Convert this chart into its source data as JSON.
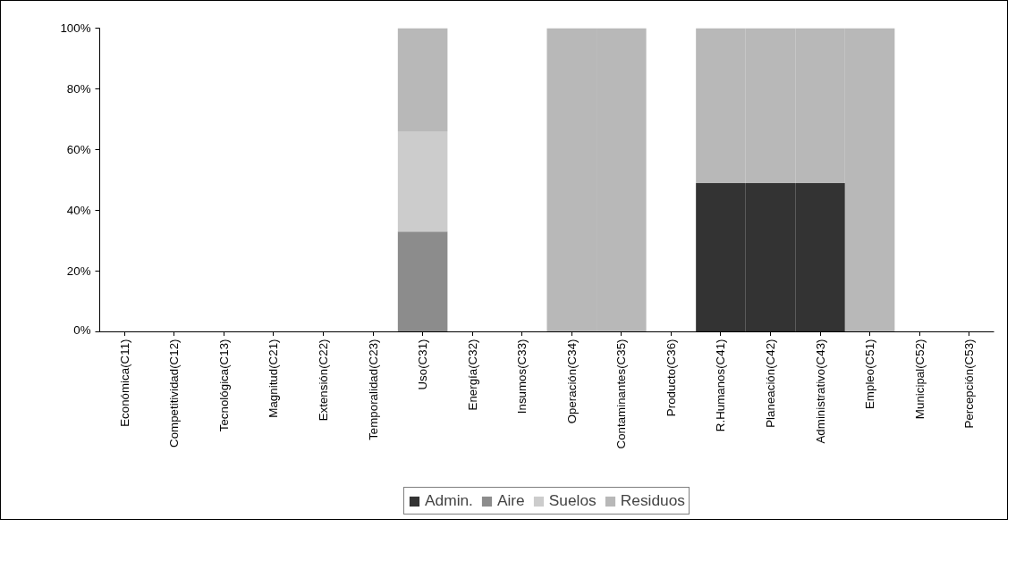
{
  "chart_data": {
    "type": "bar",
    "stacked": true,
    "categories": [
      "Económica(C11)",
      "Competitividad(C12)",
      "Tecnológica(C13)",
      "Magnitud(C21)",
      "Extensión(C22)",
      "Temporalidad(C23)",
      "Uso(C31)",
      "Energía(C32)",
      "Insumos(C33)",
      "Operación(C34)",
      "Contaminantes(C35)",
      "Producto(C36)",
      "R.Humanos(C41)",
      "Planeación(C42)",
      "Administrativo(C43)",
      "Empleo(C51)",
      "Municipal(C52)",
      "Percepción(C53)"
    ],
    "series": [
      {
        "name": "Admin.",
        "color": "#333333",
        "values": [
          0,
          0,
          0,
          0,
          0,
          0,
          0,
          0,
          0,
          0,
          0,
          0,
          49,
          49,
          49,
          0,
          0,
          0
        ]
      },
      {
        "name": "Aire",
        "color": "#8c8c8c",
        "values": [
          0,
          0,
          0,
          0,
          0,
          0,
          33,
          0,
          0,
          0,
          0,
          0,
          0,
          0,
          0,
          0,
          0,
          0
        ]
      },
      {
        "name": "Suelos",
        "color": "#cccccc",
        "values": [
          0,
          0,
          0,
          0,
          0,
          0,
          33,
          0,
          0,
          0,
          0,
          0,
          0,
          0,
          0,
          0,
          0,
          0
        ]
      },
      {
        "name": "Residuos",
        "color": "#b8b8b8",
        "values": [
          0,
          0,
          0,
          0,
          0,
          0,
          34,
          0,
          0,
          100,
          100,
          0,
          51,
          51,
          51,
          100,
          0,
          0
        ]
      }
    ],
    "ylim": [
      0,
      100
    ],
    "yticks": [
      {
        "value": 0,
        "label": "0%"
      },
      {
        "value": 20,
        "label": "20%"
      },
      {
        "value": 40,
        "label": "40%"
      },
      {
        "value": 60,
        "label": "60%"
      },
      {
        "value": 80,
        "label": "80%"
      },
      {
        "value": 100,
        "label": "100%"
      }
    ],
    "grid": false,
    "legend": "bottom"
  }
}
